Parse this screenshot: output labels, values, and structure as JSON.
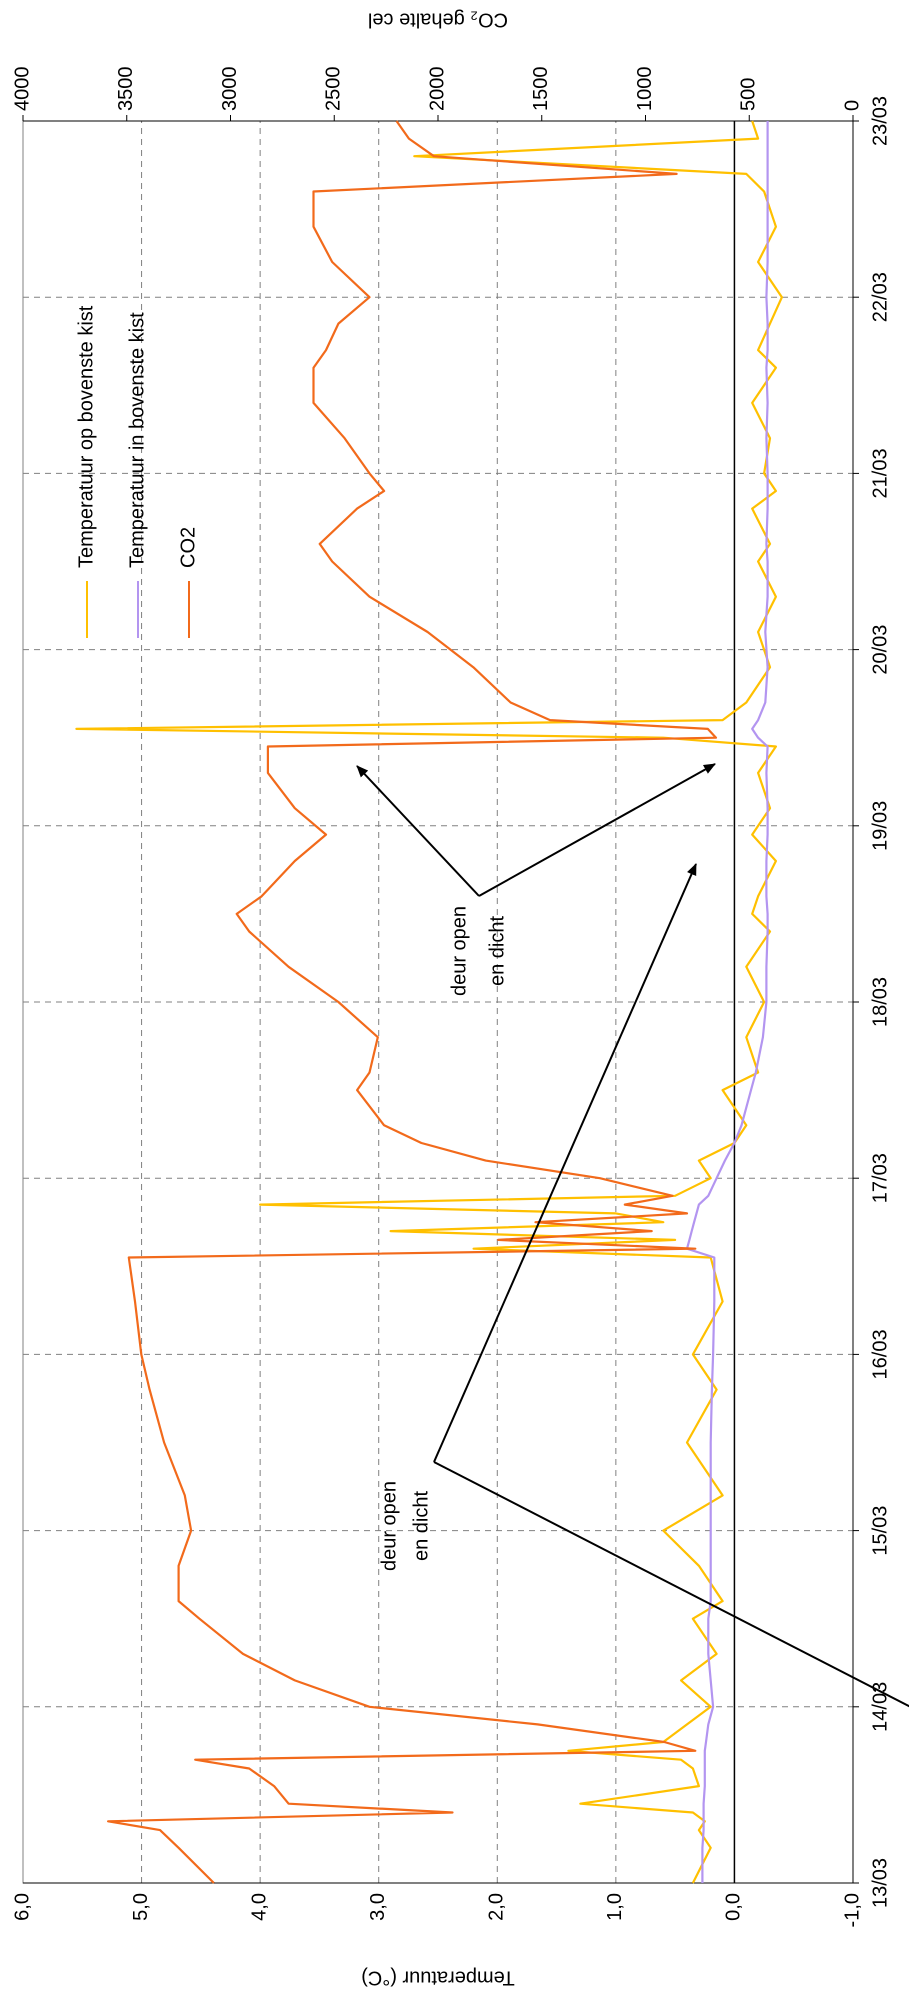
{
  "chart_data": {
    "type": "line",
    "y_label": "Temperatuur (°C)",
    "y2_label": "CO₂ gehalte cel",
    "x": [
      13.0,
      13.2,
      13.3,
      13.35,
      13.4,
      13.45,
      13.55,
      13.65,
      13.7,
      13.75,
      13.8,
      13.9,
      14.0,
      14.15,
      14.3,
      14.5,
      14.6,
      14.8,
      15.0,
      15.2,
      15.5,
      15.8,
      16.0,
      16.3,
      16.55,
      16.6,
      16.65,
      16.7,
      16.75,
      16.8,
      16.85,
      16.9,
      17.0,
      17.1,
      17.2,
      17.3,
      17.5,
      17.6,
      17.8,
      18.0,
      18.2,
      18.4,
      18.5,
      18.6,
      18.8,
      18.95,
      19.1,
      19.3,
      19.45,
      19.5,
      19.55,
      19.6,
      19.7,
      19.9,
      20.1,
      20.3,
      20.5,
      20.6,
      20.8,
      20.9,
      21.0,
      21.2,
      21.4,
      21.6,
      21.7,
      21.85,
      22.0,
      22.2,
      22.4,
      22.6,
      22.7,
      22.8,
      22.9,
      23.0
    ],
    "series": [
      {
        "name": "Temperatuur op bovenste kist",
        "color": "#ffc000",
        "values": [
          0.35,
          0.2,
          0.3,
          0.25,
          0.35,
          1.3,
          0.3,
          0.35,
          0.45,
          1.4,
          0.6,
          0.4,
          0.2,
          0.45,
          0.15,
          0.35,
          0.1,
          0.3,
          0.6,
          0.1,
          0.4,
          0.15,
          0.35,
          0.1,
          0.2,
          2.2,
          0.5,
          2.9,
          0.6,
          1.0,
          4.0,
          0.5,
          0.2,
          0.3,
          0.0,
          -0.1,
          0.1,
          -0.2,
          -0.1,
          -0.25,
          -0.1,
          -0.3,
          -0.15,
          -0.2,
          -0.35,
          -0.15,
          -0.3,
          -0.2,
          -0.35,
          0.6,
          5.55,
          0.1,
          -0.1,
          -0.3,
          -0.2,
          -0.35,
          -0.2,
          -0.3,
          -0.15,
          -0.35,
          -0.25,
          -0.3,
          -0.15,
          -0.35,
          -0.2,
          -0.3,
          -0.4,
          -0.2,
          -0.35,
          -0.25,
          -0.1,
          2.7,
          -0.2,
          -0.15
        ]
      },
      {
        "name": "Temperatuur in bovenste kist",
        "color": "#b395f0",
        "values": [
          0.27,
          0.27,
          0.26,
          0.26,
          0.26,
          0.26,
          0.25,
          0.25,
          0.25,
          0.25,
          0.24,
          0.22,
          0.18,
          0.2,
          0.22,
          0.22,
          0.2,
          0.2,
          0.2,
          0.2,
          0.2,
          0.19,
          0.18,
          0.17,
          0.17,
          0.4,
          0.38,
          0.36,
          0.34,
          0.32,
          0.3,
          0.22,
          0.15,
          0.08,
          0.0,
          -0.06,
          -0.14,
          -0.18,
          -0.24,
          -0.27,
          -0.27,
          -0.28,
          -0.28,
          -0.27,
          -0.27,
          -0.28,
          -0.28,
          -0.27,
          -0.28,
          -0.2,
          -0.15,
          -0.2,
          -0.26,
          -0.28,
          -0.26,
          -0.28,
          -0.28,
          -0.27,
          -0.28,
          -0.28,
          -0.28,
          -0.27,
          -0.28,
          -0.27,
          -0.28,
          -0.28,
          -0.27,
          -0.28,
          -0.28,
          -0.28,
          -0.28,
          -0.28,
          -0.28,
          -0.28
        ]
      },
      {
        "name": "CO2",
        "color": "#f26a1b",
        "axis": "y2",
        "values": [
          3080,
          3250,
          3340,
          3590,
          1930,
          2720,
          2790,
          2910,
          3170,
          760,
          910,
          1520,
          2330,
          2690,
          2940,
          3150,
          3250,
          3250,
          3190,
          3220,
          3320,
          3390,
          3430,
          3460,
          3490,
          760,
          1710,
          970,
          1530,
          800,
          1100,
          870,
          1220,
          1770,
          2080,
          2260,
          2390,
          2330,
          2290,
          2480,
          2720,
          2910,
          2970,
          2850,
          2690,
          2540,
          2690,
          2820,
          2820,
          660,
          700,
          1460,
          1650,
          1830,
          2050,
          2330,
          2510,
          2570,
          2390,
          2260,
          2330,
          2450,
          2600,
          2600,
          2540,
          2480,
          2330,
          2510,
          2600,
          2600,
          850,
          2020,
          2140,
          2200
        ]
      }
    ],
    "xlim": [
      13,
      23
    ],
    "xticks": [
      {
        "value": 13,
        "label": "13/03"
      },
      {
        "value": 14,
        "label": "14/03"
      },
      {
        "value": 15,
        "label": "15/03"
      },
      {
        "value": 16,
        "label": "16/03"
      },
      {
        "value": 17,
        "label": "17/03"
      },
      {
        "value": 18,
        "label": "18/03"
      },
      {
        "value": 19,
        "label": "19/03"
      },
      {
        "value": 20,
        "label": "20/03"
      },
      {
        "value": 21,
        "label": "21/03"
      },
      {
        "value": 22,
        "label": "22/03"
      },
      {
        "value": 23,
        "label": "23/03"
      }
    ],
    "ylim": [
      -1,
      6
    ],
    "yticks": [
      {
        "value": -1,
        "label": "-1,0"
      },
      {
        "value": 0,
        "label": "0,0"
      },
      {
        "value": 1,
        "label": "1,0"
      },
      {
        "value": 2,
        "label": "2,0"
      },
      {
        "value": 3,
        "label": "3,0"
      },
      {
        "value": 4,
        "label": "4,0"
      },
      {
        "value": 5,
        "label": "5,0"
      },
      {
        "value": 6,
        "label": "6,0"
      }
    ],
    "y2lim": [
      0,
      4000
    ],
    "y2ticks": [
      0,
      500,
      1000,
      1500,
      2000,
      2500,
      3000,
      3500,
      4000
    ],
    "grid": true,
    "annotations": [
      [
        "deur open",
        "en dicht"
      ],
      [
        "deur open",
        "en dicht"
      ]
    ]
  }
}
